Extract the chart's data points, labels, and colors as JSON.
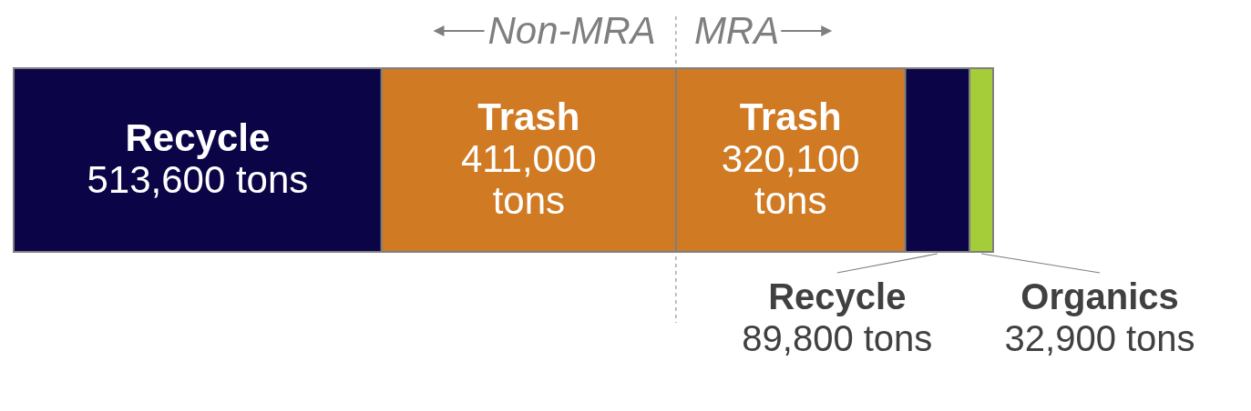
{
  "chart_data": {
    "type": "bar",
    "orientation": "horizontal",
    "stacked": true,
    "categories": [
      null
    ],
    "series": [
      {
        "name": "Recycle",
        "color": "#0b0447",
        "values": [
          513600
        ],
        "value_labels": [
          "513,600 tons"
        ]
      },
      {
        "name": "Trash",
        "color": "#d07a24",
        "values": [
          411000
        ],
        "value_labels": [
          "411,000 tons"
        ]
      },
      {
        "name": "Trash",
        "color": "#d07a24",
        "values": [
          320100
        ],
        "value_labels": [
          "320,100 tons"
        ]
      },
      {
        "name": "Recycle",
        "color": "#0b0447",
        "values": [
          89800
        ],
        "value_labels": [
          "89,800 tons"
        ]
      },
      {
        "name": "Organics",
        "color": "#a5cd39",
        "values": [
          32900
        ],
        "value_labels": [
          "32,900 tons"
        ]
      }
    ],
    "ref_lines": [
      {
        "axis": "x",
        "value": 924600,
        "line_style": "dashed",
        "color": "#7f7f7f"
      }
    ],
    "annotations": [
      "Non-MRA",
      "MRA"
    ]
  }
}
